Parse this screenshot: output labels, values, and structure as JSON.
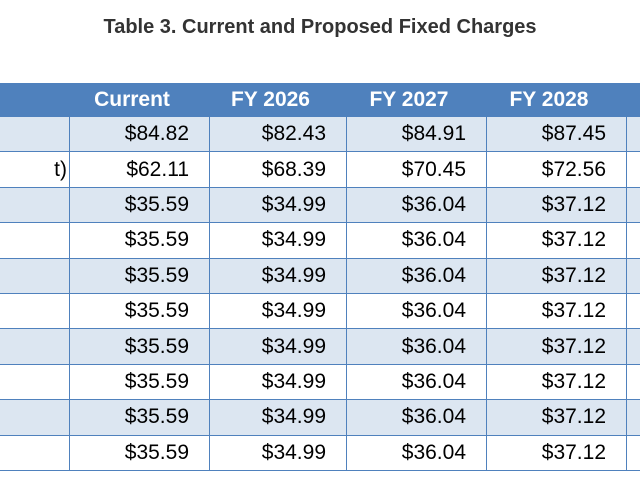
{
  "title": "Table 3. Current and Proposed Fixed Charges",
  "table": {
    "header": [
      "Current",
      "FY 2026",
      "FY 2027",
      "FY 2028"
    ],
    "rows": [
      {
        "cells": [
          "$84.82",
          "$82.43",
          "$84.91",
          "$87.45"
        ]
      },
      {
        "label": "t)",
        "cells": [
          "$62.11",
          "$68.39",
          "$70.45",
          "$72.56"
        ]
      },
      {
        "cells": [
          "$35.59",
          "$34.99",
          "$36.04",
          "$37.12"
        ]
      },
      {
        "cells": [
          "$35.59",
          "$34.99",
          "$36.04",
          "$37.12"
        ]
      },
      {
        "cells": [
          "$35.59",
          "$34.99",
          "$36.04",
          "$37.12"
        ]
      },
      {
        "cells": [
          "$35.59",
          "$34.99",
          "$36.04",
          "$37.12"
        ]
      },
      {
        "cells": [
          "$35.59",
          "$34.99",
          "$36.04",
          "$37.12"
        ]
      },
      {
        "cells": [
          "$35.59",
          "$34.99",
          "$36.04",
          "$37.12"
        ]
      },
      {
        "cells": [
          "$35.59",
          "$34.99",
          "$36.04",
          "$37.12"
        ]
      },
      {
        "cells": [
          "$35.59",
          "$34.99",
          "$36.04",
          "$37.12"
        ]
      }
    ]
  }
}
